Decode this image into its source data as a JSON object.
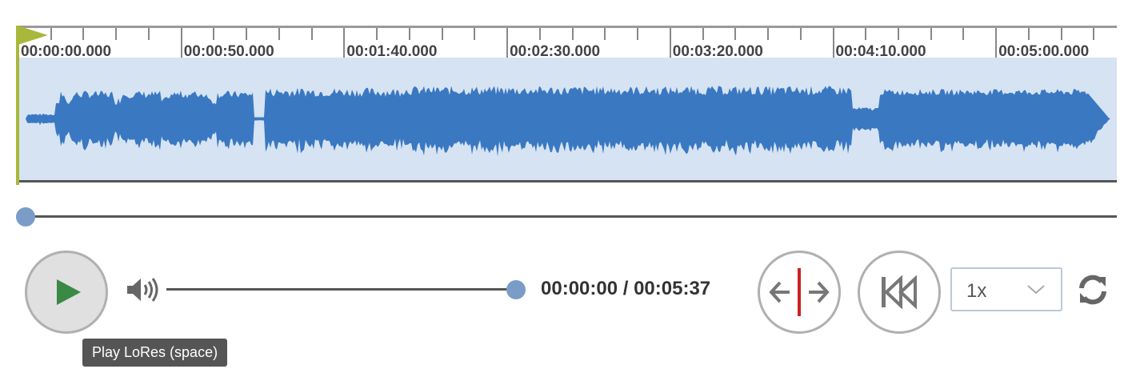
{
  "timeline": {
    "labels": [
      "00:00:00.000",
      "00:00:50.000",
      "00:01:40.000",
      "00:02:30.000",
      "00:03:20.000",
      "00:04:10.000",
      "00:05:00.000"
    ]
  },
  "colors": {
    "waveform": "#3a78c2",
    "waveform_bg": "#d6e3f3",
    "playhead": "#a8b83a",
    "knob": "#7b9cc6",
    "marker": "#cc2222"
  },
  "playback": {
    "progress": 0,
    "volume": 1,
    "time": "00:00:00 / 00:05:37",
    "speed": "1x"
  },
  "tooltip": "Play LoRes (space)",
  "icons": {
    "play": "play-icon",
    "volume": "volume-icon",
    "split": "split-arrows-icon",
    "rewind": "rewind-to-start-icon",
    "refresh": "refresh-icon"
  }
}
